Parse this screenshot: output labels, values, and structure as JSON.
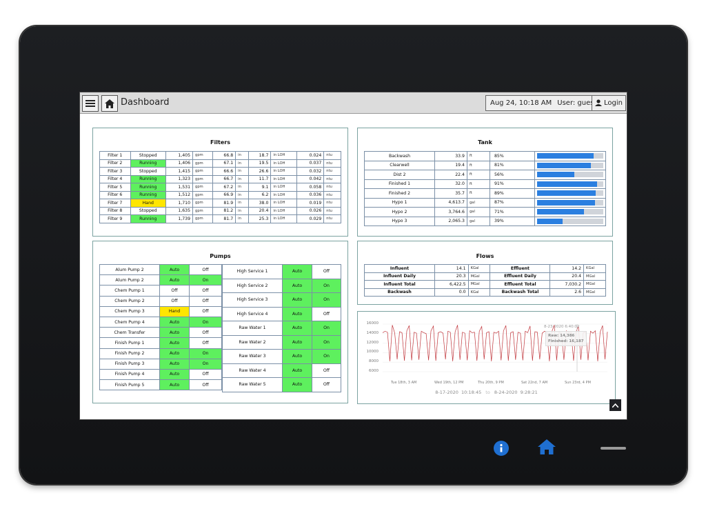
{
  "header": {
    "title": "Dashboard",
    "datetime": "Aug 24, 10:18 AM",
    "user": "User: guest",
    "login": "Login"
  },
  "filters": {
    "title": "Filters",
    "rows": [
      {
        "name": "Filter 1",
        "status": "Stopped",
        "flow": "1,405",
        "flow_u": "gpm",
        "level": "66.8",
        "level_u": "in",
        "loh": "18.7",
        "loh_u": "in LOH",
        "turb": "0.024",
        "turb_u": "ntu",
        "state": "none"
      },
      {
        "name": "Filter 2",
        "status": "Running",
        "flow": "1,406",
        "flow_u": "gpm",
        "level": "67.1",
        "level_u": "in",
        "loh": "19.5",
        "loh_u": "in LOH",
        "turb": "0.037",
        "turb_u": "ntu",
        "state": "green"
      },
      {
        "name": "Filter 3",
        "status": "Stopped",
        "flow": "1,415",
        "flow_u": "gpm",
        "level": "66.6",
        "level_u": "in",
        "loh": "26.6",
        "loh_u": "in LOH",
        "turb": "0.032",
        "turb_u": "ntu",
        "state": "none"
      },
      {
        "name": "Filter 4",
        "status": "Running",
        "flow": "1,323",
        "flow_u": "gpm",
        "level": "66.7",
        "level_u": "in",
        "loh": "11.7",
        "loh_u": "in LOH",
        "turb": "0.042",
        "turb_u": "ntu",
        "state": "green"
      },
      {
        "name": "Filter 5",
        "status": "Running",
        "flow": "1,531",
        "flow_u": "gpm",
        "level": "67.2",
        "level_u": "in",
        "loh": "9.1",
        "loh_u": "in LOH",
        "turb": "0.058",
        "turb_u": "ntu",
        "state": "green"
      },
      {
        "name": "Filter 6",
        "status": "Running",
        "flow": "1,512",
        "flow_u": "gpm",
        "level": "66.9",
        "level_u": "in",
        "loh": "6.2",
        "loh_u": "in LOH",
        "turb": "0.036",
        "turb_u": "ntu",
        "state": "green"
      },
      {
        "name": "Filter 7",
        "status": "Hand",
        "flow": "1,710",
        "flow_u": "gpm",
        "level": "81.9",
        "level_u": "in",
        "loh": "38.0",
        "loh_u": "in LOH",
        "turb": "0.019",
        "turb_u": "ntu",
        "state": "yellow"
      },
      {
        "name": "Filter 8",
        "status": "Stopped",
        "flow": "1,635",
        "flow_u": "gpm",
        "level": "81.2",
        "level_u": "in",
        "loh": "20.4",
        "loh_u": "in LOH",
        "turb": "0.026",
        "turb_u": "ntu",
        "state": "none"
      },
      {
        "name": "Filter 9",
        "status": "Running",
        "flow": "1,739",
        "flow_u": "gpm",
        "level": "81.7",
        "level_u": "in",
        "loh": "25.3",
        "loh_u": "in LOH",
        "turb": "0.029",
        "turb_u": "ntu",
        "state": "green"
      }
    ]
  },
  "tank": {
    "title": "Tank",
    "rows": [
      {
        "name": "Backwash",
        "value": "33.9",
        "unit": "ft",
        "pct": "85%",
        "fill": 0.85
      },
      {
        "name": "Clearwell",
        "value": "19.4",
        "unit": "ft",
        "pct": "81%",
        "fill": 0.81
      },
      {
        "name": "Dist 2",
        "value": "22.4",
        "unit": "ft",
        "pct": "56%",
        "fill": 0.56
      },
      {
        "name": "Finished 1",
        "value": "32.0",
        "unit": "ft",
        "pct": "91%",
        "fill": 0.91
      },
      {
        "name": "Finished 2",
        "value": "35.7",
        "unit": "ft",
        "pct": "89%",
        "fill": 0.89
      },
      {
        "name": "Hypo 1",
        "value": "4,613.7",
        "unit": "gal",
        "pct": "87%",
        "fill": 0.87
      },
      {
        "name": "Hypo 2",
        "value": "3,764.6",
        "unit": "gal",
        "pct": "71%",
        "fill": 0.71
      },
      {
        "name": "Hypo 3",
        "value": "2,065.3",
        "unit": "gal",
        "pct": "39%",
        "fill": 0.39
      }
    ]
  },
  "pumps": {
    "title": "Pumps",
    "left": [
      {
        "name": "Alum Pump 2",
        "mode": "Auto",
        "mode_c": "green",
        "state": "Off",
        "state_c": "none"
      },
      {
        "name": "Alum Pump 2",
        "mode": "Auto",
        "mode_c": "green",
        "state": "On",
        "state_c": "green"
      },
      {
        "name": "Chem Pump 1",
        "mode": "Off",
        "mode_c": "none",
        "state": "Off",
        "state_c": "none"
      },
      {
        "name": "Chem Pump 2",
        "mode": "Off",
        "mode_c": "none",
        "state": "Off",
        "state_c": "none"
      },
      {
        "name": "Chem Pump 3",
        "mode": "Hand",
        "mode_c": "yellow",
        "state": "Off",
        "state_c": "none"
      },
      {
        "name": "Chem Pump 4",
        "mode": "Auto",
        "mode_c": "green",
        "state": "On",
        "state_c": "green"
      },
      {
        "name": "Chem Transfer",
        "mode": "Auto",
        "mode_c": "green",
        "state": "Off",
        "state_c": "none"
      },
      {
        "name": "Finish Pump 1",
        "mode": "Auto",
        "mode_c": "green",
        "state": "Off",
        "state_c": "none"
      },
      {
        "name": "Finish Pump 2",
        "mode": "Auto",
        "mode_c": "green",
        "state": "On",
        "state_c": "green"
      },
      {
        "name": "Finish Pump 3",
        "mode": "Auto",
        "mode_c": "green",
        "state": "On",
        "state_c": "green"
      },
      {
        "name": "Finish Pump 4",
        "mode": "Auto",
        "mode_c": "green",
        "state": "Off",
        "state_c": "none"
      },
      {
        "name": "Finish Pump 5",
        "mode": "Auto",
        "mode_c": "green",
        "state": "Off",
        "state_c": "none"
      }
    ],
    "right": [
      {
        "name": "High Service 1",
        "mode": "Auto",
        "mode_c": "green",
        "state": "Off",
        "state_c": "none"
      },
      {
        "name": "High Service 2",
        "mode": "Auto",
        "mode_c": "green",
        "state": "On",
        "state_c": "green"
      },
      {
        "name": "High Service 3",
        "mode": "Auto",
        "mode_c": "green",
        "state": "On",
        "state_c": "green"
      },
      {
        "name": "High Service 4",
        "mode": "Auto",
        "mode_c": "green",
        "state": "Off",
        "state_c": "none"
      },
      {
        "name": "Raw Water 1",
        "mode": "Auto",
        "mode_c": "green",
        "state": "On",
        "state_c": "green"
      },
      {
        "name": "Raw Water 2",
        "mode": "Auto",
        "mode_c": "green",
        "state": "On",
        "state_c": "green"
      },
      {
        "name": "Raw Water 3",
        "mode": "Auto",
        "mode_c": "green",
        "state": "On",
        "state_c": "green"
      },
      {
        "name": "Raw Water 4",
        "mode": "Auto",
        "mode_c": "green",
        "state": "Off",
        "state_c": "none"
      },
      {
        "name": "Raw Water 5",
        "mode": "Auto",
        "mode_c": "green",
        "state": "Off",
        "state_c": "none"
      }
    ]
  },
  "flows": {
    "title": "Flows",
    "rows": [
      {
        "l_name": "Influent",
        "l_val": "14.1",
        "l_unit": "KGal",
        "r_name": "Effluent",
        "r_val": "14.2",
        "r_unit": "KGal"
      },
      {
        "l_name": "Influent Daily",
        "l_val": "20.3",
        "l_unit": "MGal",
        "r_name": "Effluent Daily",
        "r_val": "20.4",
        "r_unit": "MGal"
      },
      {
        "l_name": "Influent Total",
        "l_val": "6,422.5",
        "l_unit": "MGal",
        "r_name": "Effluent Total",
        "r_val": "7,030.2",
        "r_unit": "MGal"
      },
      {
        "l_name": "Backwash",
        "l_val": "0.0",
        "l_unit": "KGal",
        "r_name": "Backwash Total",
        "r_val": "2.6",
        "r_unit": "MGal"
      }
    ]
  },
  "chart_data": {
    "type": "line",
    "title": "",
    "xlabel": "",
    "ylabel": "",
    "ylim": [
      6000,
      16000
    ],
    "y_ticks": [
      "16000",
      "14000",
      "12000",
      "10000",
      "8000",
      "6000"
    ],
    "x_ticks": [
      "Tue 18th, 3 AM",
      "Wed 19th, 12 PM",
      "Thu 20th, 9 PM",
      "Sat 22nd, 7 AM",
      "Sun 23rd, 4 PM"
    ],
    "tooltip": {
      "time": "8-23-2020 6:40:02",
      "raw": "Raw: 14,386",
      "finished": "Finished: 16,187"
    },
    "range": {
      "from": "8-17-2020  10:18:45",
      "to_word": "to",
      "to": "8-24-2020  9:28:21"
    },
    "colors": {
      "line": "#c0353b"
    },
    "series": [
      {
        "values": [
          14200,
          14500,
          14300,
          8200,
          15800,
          14100,
          8600,
          14400,
          14200,
          8300,
          14600,
          15700,
          8400,
          14300,
          14100,
          8500,
          14500,
          14200,
          14000,
          8400,
          14600,
          15600,
          8300,
          14200,
          14400,
          14100,
          8600,
          14500,
          14300,
          8200,
          14400,
          15800,
          8500,
          14300,
          14100,
          8400,
          14600,
          14200,
          14300,
          8300,
          14500,
          15500,
          8600,
          14200,
          14400,
          8200,
          14300,
          14100,
          14500,
          8400,
          14600,
          15700,
          8300,
          14200,
          14400,
          8500,
          14300,
          14100,
          8400,
          14500,
          14200,
          15600,
          8300,
          14400,
          14300,
          8600,
          14100,
          14500,
          14200,
          8200,
          14400,
          15800,
          8400,
          14300,
          14100,
          8500,
          14600,
          14200,
          14300,
          8300,
          14400,
          15500,
          8500,
          14200,
          14300,
          8400,
          14500,
          14100,
          14600,
          8200,
          14300,
          15700,
          8600,
          14400
        ]
      }
    ]
  }
}
